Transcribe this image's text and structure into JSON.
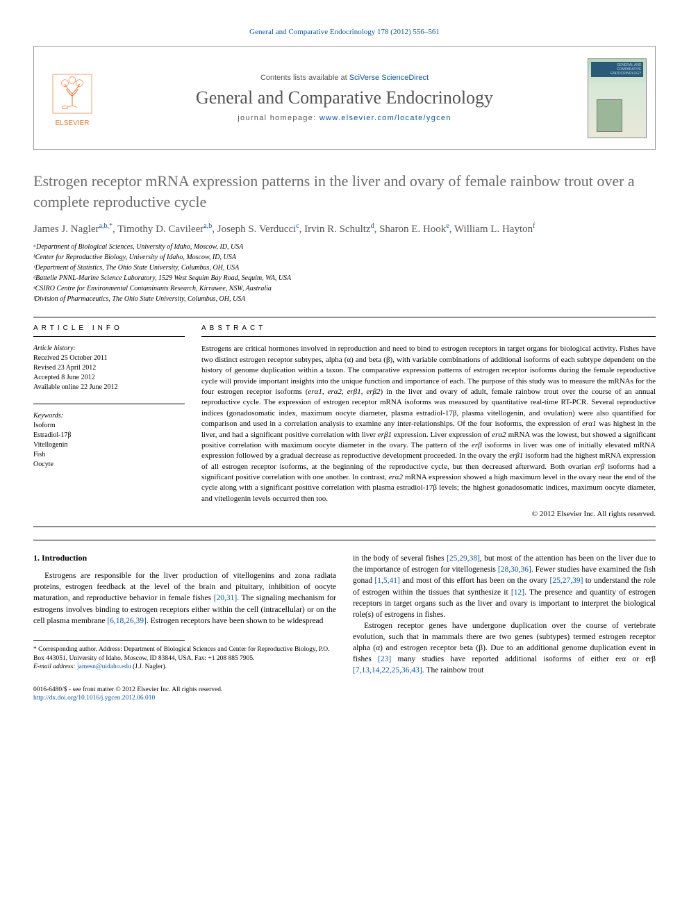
{
  "citation": "General and Comparative Endocrinology 178 (2012) 556–561",
  "header": {
    "contents_prefix": "Contents lists available at ",
    "contents_link": "SciVerse ScienceDirect",
    "journal_name": "General and Comparative Endocrinology",
    "homepage_prefix": "journal homepage: ",
    "homepage_link": "www.elsevier.com/locate/ygcen",
    "elsevier_label": "ELSEVIER",
    "cover_label": "GENERAL AND COMPARATIVE ENDOCRINOLOGY"
  },
  "title": "Estrogen receptor mRNA expression patterns in the liver and ovary of female rainbow trout over a complete reproductive cycle",
  "authors_html": "James J. Nagler<sup class='sup link'>a,b,</sup><sup class='sup'>*</sup>, Timothy D. Cavileer<sup class='sup link'>a,b</sup>, Joseph S. Verducci<sup class='sup link'>c</sup>, Irvin R. Schultz<sup class='sup link'>d</sup>, Sharon E. Hook<sup class='sup link'>e</sup>, William L. Hayton<sup class='sup link'>f</sup>",
  "affiliations": [
    "ᵃDepartment of Biological Sciences, University of Idaho, Moscow, ID, USA",
    "ᵇCenter for Reproductive Biology, University of Idaho, Moscow, ID, USA",
    "ᶜDepartment of Statistics, The Ohio State University, Columbus, OH, USA",
    "ᵈBattelle PNNL-Marine Science Laboratory, 1529 West Sequim Bay Road, Sequim, WA, USA",
    "ᵉCSIRO Centre for Environmental Contaminants Research, Kirrawee, NSW, Australia",
    "ᶠDivision of Pharmaceutics, The Ohio State University, Columbus, OH, USA"
  ],
  "article_info": {
    "head": "ARTICLE INFO",
    "history_label": "Article history:",
    "received": "Received 25 October 2011",
    "revised": "Revised 23 April 2012",
    "accepted": "Accepted 8 June 2012",
    "online": "Available online 22 June 2012",
    "keywords_label": "Keywords:",
    "keywords": [
      "Isoform",
      "Estradiol-17β",
      "Vitellogenin",
      "Fish",
      "Oocyte"
    ]
  },
  "abstract": {
    "head": "ABSTRACT",
    "text": "Estrogens are critical hormones involved in reproduction and need to bind to estrogen receptors in target organs for biological activity. Fishes have two distinct estrogen receptor subtypes, alpha (α) and beta (β), with variable combinations of additional isoforms of each subtype dependent on the history of genome duplication within a taxon. The comparative expression patterns of estrogen receptor isoforms during the female reproductive cycle will provide important insights into the unique function and importance of each. The purpose of this study was to measure the mRNAs for the four estrogen receptor isoforms (<span class='italic'>erα1, erα2, erβ1, erβ2</span>) in the liver and ovary of adult, female rainbow trout over the course of an annual reproductive cycle. The expression of estrogen receptor mRNA isoforms was measured by quantitative real-time RT-PCR. Several reproductive indices (gonadosomatic index, maximum oocyte diameter, plasma estradiol-17β, plasma vitellogenin, and ovulation) were also quantified for comparison and used in a correlation analysis to examine any inter-relationships. Of the four isoforms, the expression of <span class='italic'>erα1</span> was highest in the liver, and had a significant positive correlation with liver <span class='italic'>erβ1</span> expression. Liver expression of <span class='italic'>erα2</span> mRNA was the lowest, but showed a significant positive correlation with maximum oocyte diameter in the ovary. The pattern of the <span class='italic'>erβ</span> isoforms in liver was one of initially elevated mRNA expression followed by a gradual decrease as reproductive development proceeded. In the ovary the <span class='italic'>erβ1</span> isoform had the highest mRNA expression of all estrogen receptor isoforms, at the beginning of the reproductive cycle, but then decreased afterward. Both ovarian <span class='italic'>erβ</span> isoforms had a significant positive correlation with one another. In contrast, <span class='italic'>erα2</span> mRNA expression showed a high maximum level in the ovary near the end of the cycle along with a significant positive correlation with plasma estradiol-17β levels; the highest gonadosomatic indices, maximum oocyte diameter, and vitellogenin levels occurred then too.",
    "copyright": "© 2012 Elsevier Inc. All rights reserved."
  },
  "body": {
    "intro_heading": "1. Introduction",
    "left_para": "Estrogens are responsible for the liver production of vitellogenins and zona radiata proteins, estrogen feedback at the level of the brain and pituitary, inhibition of oocyte maturation, and reproductive behavior in female fishes <span class='link'>[20,31]</span>. The signaling mechanism for estrogens involves binding to estrogen receptors either within the cell (intracellular) or on the cell plasma membrane <span class='link'>[6,18,26,39]</span>. Estrogen receptors have been shown to be widespread",
    "right_para1": "in the body of several fishes <span class='link'>[25,29,38]</span>, but most of the attention has been on the liver due to the importance of estrogen for vitellogenesis <span class='link'>[28,30,36]</span>. Fewer studies have examined the fish gonad <span class='link'>[1,5,41]</span> and most of this effort has been on the ovary <span class='link'>[25,27,39]</span> to understand the role of estrogen within the tissues that synthesize it <span class='link'>[12]</span>. The presence and quantity of estrogen receptors in target organs such as the liver and ovary is important to interpret the biological role(s) of estrogens in fishes.",
    "right_para2": "Estrogen receptor genes have undergone duplication over the course of vertebrate evolution, such that in mammals there are two genes (subtypes) termed estrogen receptor alpha (α) and estrogen receptor beta (β). Due to an additional genome duplication event in fishes <span class='link'>[23]</span> many studies have reported additional isoforms of either <span class='italic'>erα</span> or <span class='italic'>erβ</span> <span class='link'>[7,13,14,22,25,36,43]</span>. The rainbow trout"
  },
  "footnote": {
    "corr": "* Corresponding author. Address: Department of Biological Sciences and Center for Reproductive Biology, P.O. Box 443051, University of Idaho, Moscow, ID 83844, USA. Fax: +1 208 885 7905.",
    "email_label": "E-mail address: ",
    "email": "jamesn@uidaho.edu",
    "email_suffix": " (J.J. Nagler)."
  },
  "footer": {
    "line1": "0016-6480/$ - see front matter © 2012 Elsevier Inc. All rights reserved.",
    "doi": "http://dx.doi.org/10.1016/j.ygcen.2012.06.010"
  },
  "colors": {
    "link": "#0856a6",
    "orange": "#e7792b",
    "gray": "#6b6b6b"
  }
}
